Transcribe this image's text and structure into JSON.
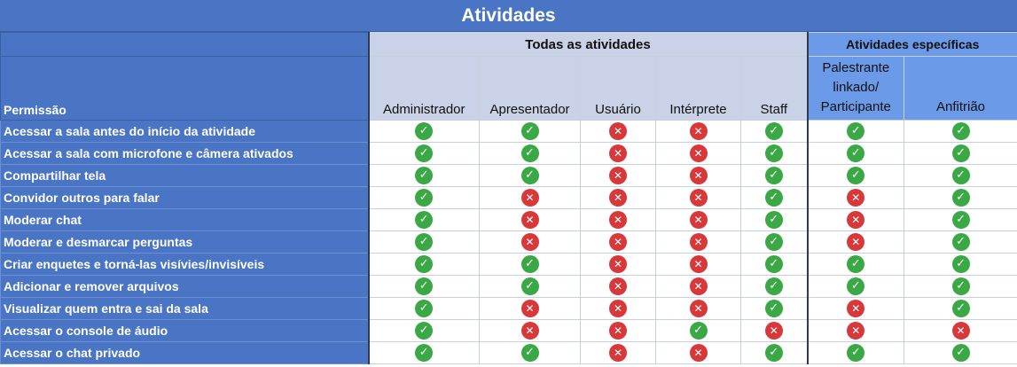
{
  "title": "Atividades",
  "groups": {
    "todas": "Todas as atividades",
    "especificas": "Atividades específicas"
  },
  "permission_header": "Permissão",
  "columns": {
    "administrador": "Administrador",
    "apresentador": "Apresentador",
    "usuario": "Usuário",
    "interprete": "Intérprete",
    "staff": "Staff",
    "palestrante": "Palestrante linkado/ Participante",
    "anfitriao": "Anfitrião"
  },
  "icons": {
    "yes": "check-circle-icon",
    "no": "x-circle-icon"
  },
  "colors": {
    "header_blue": "#4a74c4",
    "group_gray": "#c9d2e6",
    "group_blue": "#6b9ae8",
    "yes_green": "#3aa845",
    "no_red": "#d8383a"
  },
  "rows": [
    {
      "label": "Acessar a sala antes do início da atividade",
      "values": [
        true,
        true,
        false,
        false,
        true,
        true,
        true
      ]
    },
    {
      "label": "Acessar a sala com microfone e câmera ativados",
      "values": [
        true,
        true,
        false,
        false,
        true,
        true,
        true
      ]
    },
    {
      "label": "Compartilhar tela",
      "values": [
        true,
        true,
        false,
        false,
        true,
        true,
        true
      ]
    },
    {
      "label": "Convidor outros para falar",
      "values": [
        true,
        false,
        false,
        false,
        true,
        false,
        true
      ]
    },
    {
      "label": "Moderar chat",
      "values": [
        true,
        false,
        false,
        false,
        true,
        false,
        true
      ]
    },
    {
      "label": "Moderar e desmarcar perguntas",
      "values": [
        true,
        false,
        false,
        false,
        true,
        false,
        true
      ]
    },
    {
      "label": "Criar enquetes e torná-las visívies/invisíveis",
      "values": [
        true,
        true,
        false,
        false,
        true,
        true,
        true
      ]
    },
    {
      "label": "Adicionar e remover arquivos",
      "values": [
        true,
        true,
        false,
        false,
        true,
        true,
        true
      ]
    },
    {
      "label": "Visualizar quem entra e sai da sala",
      "values": [
        true,
        false,
        false,
        false,
        true,
        false,
        true
      ]
    },
    {
      "label": "Acessar o console de áudio",
      "values": [
        true,
        false,
        false,
        true,
        false,
        false,
        false
      ]
    },
    {
      "label": "Acessar o chat privado",
      "values": [
        true,
        true,
        false,
        false,
        true,
        true,
        true
      ]
    }
  ]
}
